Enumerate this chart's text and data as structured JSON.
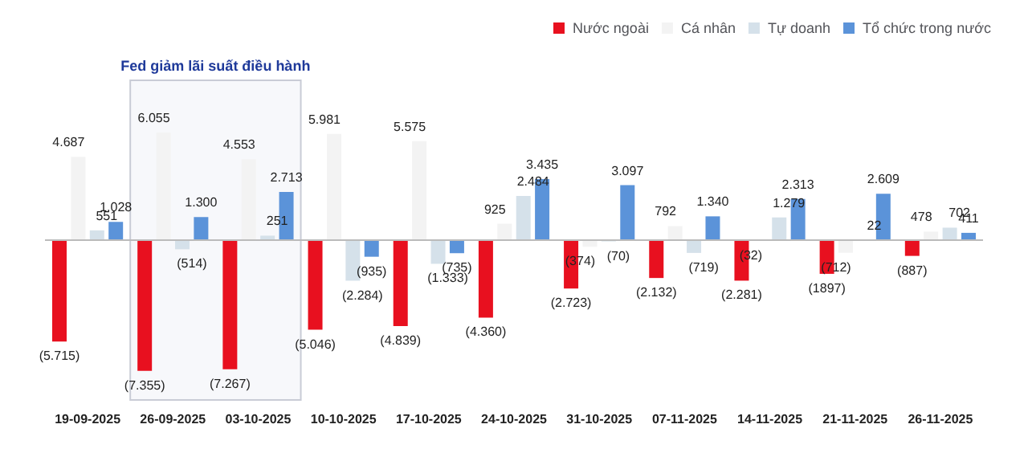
{
  "chart_data": {
    "type": "bar",
    "categories": [
      "19-09-2025",
      "26-09-2025",
      "03-10-2025",
      "10-10-2025",
      "17-10-2025",
      "24-10-2025",
      "31-10-2025",
      "07-11-2025",
      "14-11-2025",
      "21-11-2025",
      "26-11-2025"
    ],
    "series": [
      {
        "name": "Nước ngoài",
        "color": "#e8101f",
        "values": [
          -5715,
          -7355,
          -7267,
          -5046,
          -4839,
          -4360,
          -2723,
          -2132,
          -2281,
          -1897,
          -887
        ],
        "value_labels": [
          "(5.715)",
          "(7.355)",
          "(7.267)",
          "(5.046)",
          "(4.839)",
          "(4.360)",
          "(2.723)",
          "(2.132)",
          "(2.281)",
          "(1897)",
          "(887)"
        ]
      },
      {
        "name": "Cá nhân",
        "color": "#f3f3f3",
        "values": [
          4687,
          6055,
          4553,
          5981,
          5575,
          925,
          -374,
          792,
          -32,
          -712,
          478
        ],
        "value_labels": [
          "4.687",
          "6.055",
          "4.553",
          "5.981",
          "5.575",
          "925",
          "(374)",
          "792",
          "(32)",
          "(712)",
          "478"
        ]
      },
      {
        "name": "Tự doanh",
        "color": "#d5e1ea",
        "values": [
          551,
          -514,
          251,
          -2284,
          -1333,
          2484,
          -70,
          -719,
          1279,
          22,
          702
        ],
        "value_labels": [
          "551",
          "(514)",
          "251",
          "(2.284)",
          "(1.333)",
          "2.484",
          "(70)",
          "(719)",
          "1.279",
          "22",
          "702"
        ]
      },
      {
        "name": "Tổ chức trong nước",
        "color": "#5b93d9",
        "values": [
          1028,
          1300,
          2713,
          -935,
          -735,
          3435,
          3097,
          1340,
          2313,
          2609,
          411
        ],
        "value_labels": [
          "1.028",
          "1.300",
          "2.713",
          "(935)",
          "(735)",
          "3.435",
          "3.097",
          "1.340",
          "2.313",
          "2.609",
          "411"
        ]
      }
    ],
    "bands": [
      {
        "axis": "x",
        "from": "26-09-2025",
        "to": "03-10-2025",
        "label": "Fed giảm lãi suất điều hành",
        "color": "#c9ccd6"
      }
    ],
    "legend": "top right",
    "grid": false
  }
}
